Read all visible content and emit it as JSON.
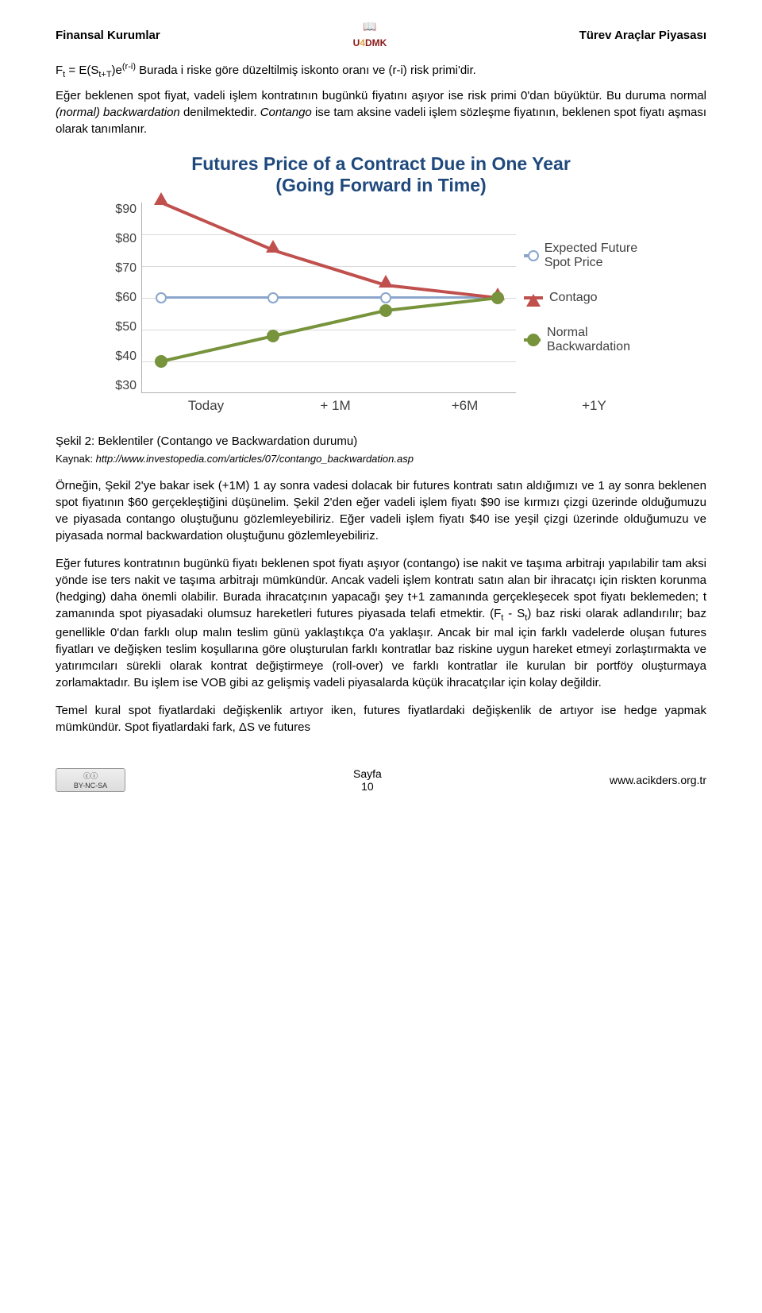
{
  "header": {
    "left": "Finansal Kurumlar",
    "right": "Türev Araçlar Piyasası",
    "logo_text_top": "📖",
    "logo_text_bottom": "U4DMK",
    "logo_color": "#8b1a1a"
  },
  "formula": {
    "lhs": "F",
    "lhs_sub": "t",
    "eq": " = E(S",
    "mid_sub": "t+T",
    "mid2": ")e",
    "sup": "(r-i)",
    "tail": "   Burada i riske göre düzeltilmiş iskonto oranı ve (r-i) risk primi'dir."
  },
  "para1": "Eğer beklenen spot fiyat, vadeli işlem kontratının bugünkü fiyatını aşıyor ise risk primi 0'dan büyüktür. Bu duruma normal (normal) backwardation denilmektedir. Contango ise tam aksine vadeli işlem sözleşme fiyatının, beklenen spot fiyatı aşması olarak tanımlanır.",
  "chart": {
    "title_l1": "Futures Price of a Contract Due in One Year",
    "title_l2": "(Going Forward in Time)",
    "ylim": [
      30,
      90
    ],
    "ytick_step": 10,
    "y_labels": [
      "$90",
      "$80",
      "$70",
      "$60",
      "$50",
      "$40",
      "$30"
    ],
    "x_labels": [
      "Today",
      "+ 1M",
      "+6M",
      "+1Y"
    ],
    "series": {
      "expected": {
        "label": "Expected Future Spot Price",
        "color": "#8aa6cc",
        "marker": "open-circle",
        "points": [
          [
            0,
            60
          ],
          [
            1,
            60
          ],
          [
            2,
            60
          ],
          [
            3,
            60
          ]
        ]
      },
      "contango": {
        "label": "Contago",
        "color": "#c0504d",
        "marker": "triangle",
        "points": [
          [
            0,
            90
          ],
          [
            1,
            75
          ],
          [
            2,
            64
          ],
          [
            3,
            60
          ]
        ]
      },
      "backwardation": {
        "label": "Normal Backwardation",
        "color": "#77933c",
        "marker": "circle",
        "points": [
          [
            0,
            40
          ],
          [
            1,
            48
          ],
          [
            2,
            56
          ],
          [
            3,
            60
          ]
        ]
      }
    },
    "plot_bg": "#ffffff",
    "grid_color": "#d9d9d9",
    "title_fontsize": 23,
    "title_color": "#1f497d",
    "axis_fontsize": 16
  },
  "caption": "Şekil 2: Beklentiler (Contango ve Backwardation durumu)",
  "source_prefix": "Kaynak:  ",
  "source_url": "http://www.investopedia.com/articles/07/contango_backwardation.asp",
  "para2": "Örneğin, Şekil 2'ye bakar isek (+1M) 1 ay sonra vadesi dolacak bir futures kontratı satın aldığımızı ve 1 ay sonra beklenen spot fiyatının $60 gerçekleştiğini düşünelim. Şekil 2'den eğer vadeli işlem fiyatı $90 ise kırmızı çizgi üzerinde olduğumuzu ve piyasada contango oluştuğunu gözlemleyebiliriz. Eğer vadeli işlem fiyatı $40 ise yeşil çizgi üzerinde olduğumuzu ve piyasada normal backwardation oluştuğunu gözlemleyebiliriz.",
  "para3": "Eğer futures kontratının bugünkü fiyatı beklenen spot fiyatı aşıyor (contango) ise nakit ve taşıma arbitrajı yapılabilir tam aksi yönde ise ters nakit ve taşıma arbitrajı mümkündür. Ancak vadeli işlem kontratı satın alan bir ihracatçı için riskten korunma (hedging) daha önemli olabilir. Burada ihracatçının yapacağı şey t+1 zamanında gerçekleşecek spot fiyatı beklemeden; t zamanında spot piyasadaki olumsuz hareketleri futures piyasada telafi etmektir. (F",
  "para3_sub1": "t",
  "para3_mid": " - S",
  "para3_sub2": "t",
  "para3_tail": ") baz riski olarak adlandırılır; baz genellikle 0'dan farklı olup malın teslim günü yaklaştıkça 0'a yaklaşır. Ancak bir mal için farklı vadelerde oluşan futures fiyatları ve değişken teslim koşullarına göre oluşturulan farklı kontratlar baz riskine uygun hareket etmeyi zorlaştırmakta ve yatırımcıları sürekli olarak kontrat değiştirmeye (roll-over) ve farklı kontratlar ile kurulan bir portföy oluşturmaya zorlamaktadır. Bu işlem ise VOB gibi az gelişmiş vadeli piyasalarda küçük ihracatçılar için kolay değildir.",
  "para4": "Temel kural spot fiyatlardaki değişkenlik artıyor iken, futures fiyatlardaki değişkenlik de artıyor ise hedge yapmak mümkündür. Spot fiyatlardaki fark, ΔS ve futures",
  "footer": {
    "cc": "CC BY-NC-SA",
    "page_label": "Sayfa",
    "page_no": "10",
    "url": "www.acikders.org.tr"
  }
}
